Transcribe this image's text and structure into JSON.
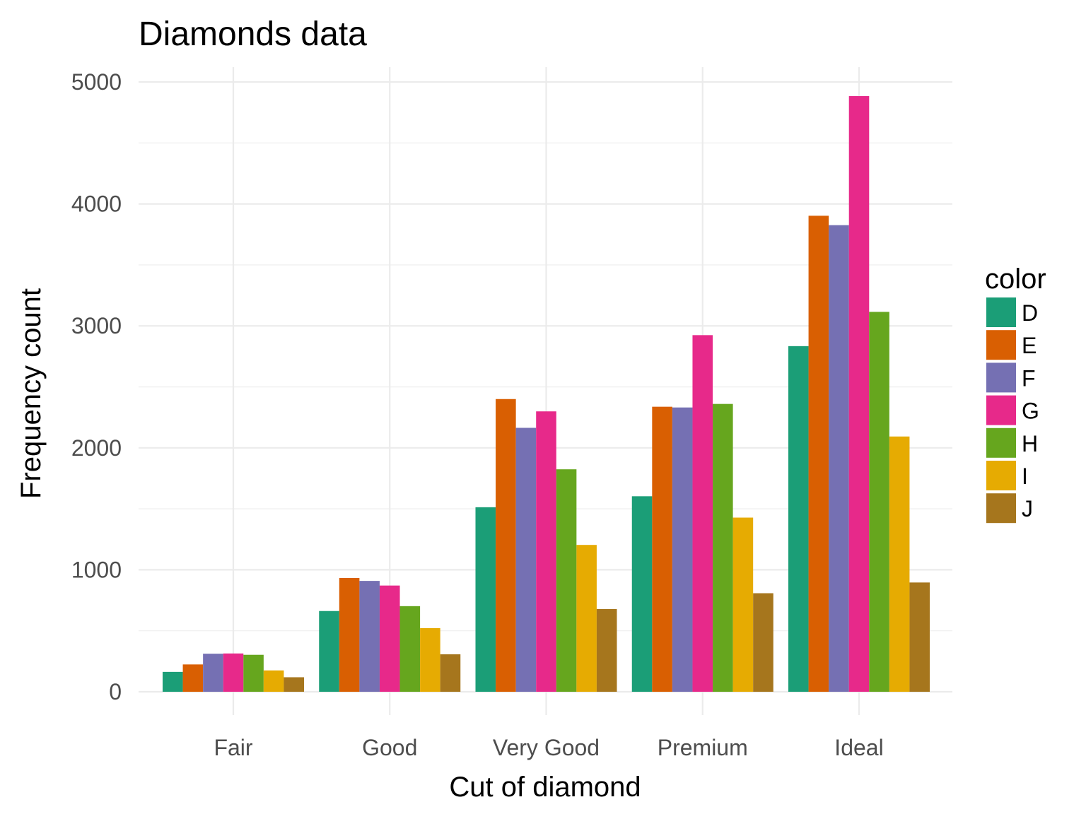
{
  "chart_data": {
    "type": "bar",
    "title": "Diamonds data",
    "xlabel": "Cut of diamond",
    "ylabel": "Frequency count",
    "categories": [
      "Fair",
      "Good",
      "Very Good",
      "Premium",
      "Ideal"
    ],
    "ylim": [
      0,
      5000
    ],
    "yticks": [
      0,
      1000,
      2000,
      3000,
      4000,
      5000
    ],
    "grid": true,
    "legend": {
      "title": "color",
      "position": "right"
    },
    "series": [
      {
        "name": "D",
        "color": "#1b9e77",
        "values": [
          163,
          662,
          1513,
          1603,
          2834
        ]
      },
      {
        "name": "E",
        "color": "#d95f02",
        "values": [
          224,
          933,
          2400,
          2337,
          3903
        ]
      },
      {
        "name": "F",
        "color": "#7570b3",
        "values": [
          312,
          909,
          2164,
          2331,
          3826
        ]
      },
      {
        "name": "G",
        "color": "#e7298a",
        "values": [
          314,
          871,
          2299,
          2924,
          4884
        ]
      },
      {
        "name": "H",
        "color": "#66a61e",
        "values": [
          303,
          702,
          1824,
          2360,
          3115
        ]
      },
      {
        "name": "I",
        "color": "#e6ab02",
        "values": [
          175,
          522,
          1204,
          1428,
          2093
        ]
      },
      {
        "name": "J",
        "color": "#a6761d",
        "values": [
          119,
          307,
          678,
          808,
          896
        ]
      }
    ]
  }
}
